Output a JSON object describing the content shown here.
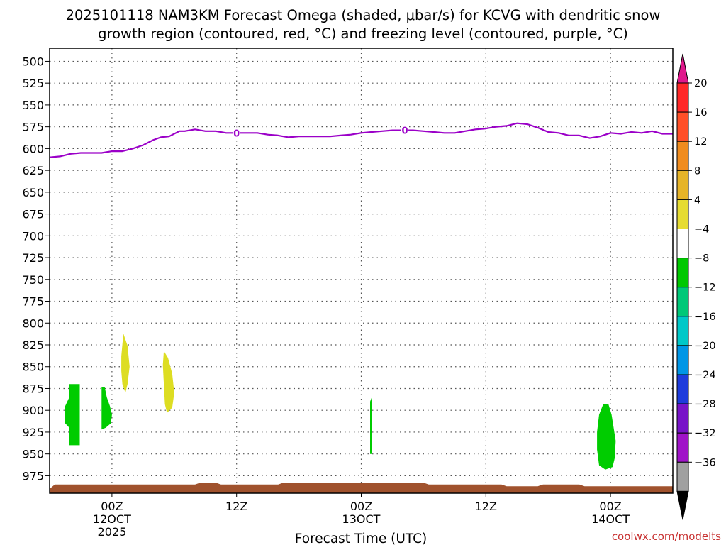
{
  "chart_data": {
    "type": "time-height",
    "title_line1": "2025101118 NAM3KM Forecast Omega (shaded, μbar/s) for KCVG with dendritic snow",
    "title_line2": "growth region (contoured, red, °C) and freezing level (contoured, purple, °C)",
    "xlabel": "Forecast Time (UTC)",
    "credit": "coolwx.com/modelts",
    "x_range_hours": [
      0,
      60
    ],
    "x_ticks": [
      {
        "hour": 6,
        "label": "00Z",
        "sub1": "12OCT",
        "sub2": "2025"
      },
      {
        "hour": 18,
        "label": "12Z",
        "sub1": "",
        "sub2": ""
      },
      {
        "hour": 30,
        "label": "00Z",
        "sub1": "13OCT",
        "sub2": ""
      },
      {
        "hour": 42,
        "label": "12Z",
        "sub1": "",
        "sub2": ""
      },
      {
        "hour": 54,
        "label": "00Z",
        "sub1": "14OCT",
        "sub2": ""
      }
    ],
    "y_range_hPa": [
      485,
      995
    ],
    "y_ticks": [
      "500",
      "525",
      "550",
      "575",
      "600",
      "625",
      "650",
      "675",
      "700",
      "725",
      "750",
      "775",
      "800",
      "825",
      "850",
      "875",
      "900",
      "925",
      "950",
      "975"
    ],
    "freezing_level": {
      "label": "0",
      "color": "#9b00c8",
      "label_hours": [
        18,
        34.2
      ],
      "points": [
        [
          0,
          610
        ],
        [
          1,
          609
        ],
        [
          2,
          606
        ],
        [
          3,
          605
        ],
        [
          5,
          605
        ],
        [
          6,
          603
        ],
        [
          7,
          603
        ],
        [
          8,
          600
        ],
        [
          9,
          596
        ],
        [
          10,
          590
        ],
        [
          10.7,
          587
        ],
        [
          11.5,
          586
        ],
        [
          12.5,
          580
        ],
        [
          13,
          580
        ],
        [
          14,
          578
        ],
        [
          15,
          580
        ],
        [
          16,
          580
        ],
        [
          17,
          582
        ],
        [
          18,
          582
        ],
        [
          19,
          582
        ],
        [
          20,
          582
        ],
        [
          21,
          584
        ],
        [
          22,
          585
        ],
        [
          23,
          587
        ],
        [
          24,
          586
        ],
        [
          25,
          586
        ],
        [
          26,
          586
        ],
        [
          27,
          586
        ],
        [
          28,
          585
        ],
        [
          29,
          584
        ],
        [
          30,
          582
        ],
        [
          31,
          581
        ],
        [
          32,
          580
        ],
        [
          33,
          579
        ],
        [
          34,
          579
        ],
        [
          35,
          579
        ],
        [
          36,
          580
        ],
        [
          37,
          581
        ],
        [
          38,
          582
        ],
        [
          39,
          582
        ],
        [
          40,
          580
        ],
        [
          41,
          578
        ],
        [
          42,
          577
        ],
        [
          43,
          575
        ],
        [
          44,
          574
        ],
        [
          45,
          571
        ],
        [
          46,
          572
        ],
        [
          47,
          576
        ],
        [
          48,
          581
        ],
        [
          49,
          582
        ],
        [
          50,
          585
        ],
        [
          51,
          585
        ],
        [
          52,
          588
        ],
        [
          53,
          586
        ],
        [
          54,
          582
        ],
        [
          55,
          583
        ],
        [
          56,
          581
        ],
        [
          57,
          582
        ],
        [
          58,
          580
        ],
        [
          59,
          583
        ],
        [
          60,
          583
        ]
      ]
    },
    "omega_blobs": [
      {
        "name": "green-blob-1",
        "color": "#00cc00",
        "points": [
          [
            1.9,
            870
          ],
          [
            2.9,
            870
          ],
          [
            2.9,
            940
          ],
          [
            1.9,
            940
          ],
          [
            1.9,
            920
          ],
          [
            1.5,
            915
          ],
          [
            1.5,
            895
          ],
          [
            1.9,
            885
          ]
        ]
      },
      {
        "name": "green-blob-2",
        "color": "#00cc00",
        "points": [
          [
            5.0,
            873
          ],
          [
            5.3,
            873
          ],
          [
            5.5,
            885
          ],
          [
            5.8,
            895
          ],
          [
            6.0,
            905
          ],
          [
            5.9,
            915
          ],
          [
            5.4,
            920
          ],
          [
            5.0,
            922
          ],
          [
            5.0,
            900
          ]
        ]
      },
      {
        "name": "yellow-blob-1",
        "color": "#dddd22",
        "points": [
          [
            6.9,
            838
          ],
          [
            7.1,
            812
          ],
          [
            7.5,
            826
          ],
          [
            7.7,
            850
          ],
          [
            7.5,
            870
          ],
          [
            7.3,
            880
          ],
          [
            7.0,
            870
          ],
          [
            6.9,
            855
          ]
        ]
      },
      {
        "name": "yellow-blob-2",
        "color": "#dddd22",
        "points": [
          [
            10.9,
            848
          ],
          [
            11.0,
            832
          ],
          [
            11.4,
            840
          ],
          [
            11.8,
            858
          ],
          [
            12.0,
            880
          ],
          [
            11.8,
            897
          ],
          [
            11.3,
            903
          ],
          [
            11.1,
            893
          ],
          [
            11.0,
            870
          ]
        ]
      },
      {
        "name": "green-blob-3",
        "color": "#00cc00",
        "points": [
          [
            30.85,
            890
          ],
          [
            31.05,
            884
          ],
          [
            31.05,
            950
          ],
          [
            30.85,
            950
          ]
        ]
      },
      {
        "name": "green-blob-4",
        "color": "#00cc00",
        "points": [
          [
            52.7,
            925
          ],
          [
            52.9,
            905
          ],
          [
            53.3,
            893
          ],
          [
            53.8,
            893
          ],
          [
            54.1,
            905
          ],
          [
            54.3,
            920
          ],
          [
            54.5,
            935
          ],
          [
            54.4,
            955
          ],
          [
            54.2,
            965
          ],
          [
            53.5,
            968
          ],
          [
            52.9,
            963
          ],
          [
            52.7,
            945
          ]
        ]
      }
    ],
    "ground": {
      "color": "#a0522d",
      "points": [
        [
          0,
          990
        ],
        [
          0.5,
          985
        ],
        [
          14,
          985
        ],
        [
          14.5,
          983
        ],
        [
          16,
          983
        ],
        [
          16.5,
          985
        ],
        [
          22,
          985
        ],
        [
          22.5,
          983
        ],
        [
          36,
          983
        ],
        [
          36.5,
          985
        ],
        [
          43.5,
          985
        ],
        [
          44,
          987
        ],
        [
          47,
          987
        ],
        [
          47.5,
          985
        ],
        [
          51,
          985
        ],
        [
          51.5,
          987
        ],
        [
          60,
          987
        ]
      ]
    },
    "colorbar": {
      "levels": [
        "20",
        "16",
        "12",
        "8",
        "4",
        "−4",
        "−8",
        "−12",
        "−16",
        "−20",
        "−24",
        "−28",
        "−32",
        "−36"
      ],
      "top_triangle_color": "#e0188c",
      "bottom_triangle_color": "#000000",
      "colors": [
        "#ff2828",
        "#ff5028",
        "#f08c1e",
        "#e6b428",
        "#e6dc32",
        "#ffffff",
        "#00c800",
        "#00c878",
        "#00c8c8",
        "#0096e6",
        "#1e3cdc",
        "#7814c8",
        "#a014c8",
        "#a0a0a0"
      ]
    }
  }
}
